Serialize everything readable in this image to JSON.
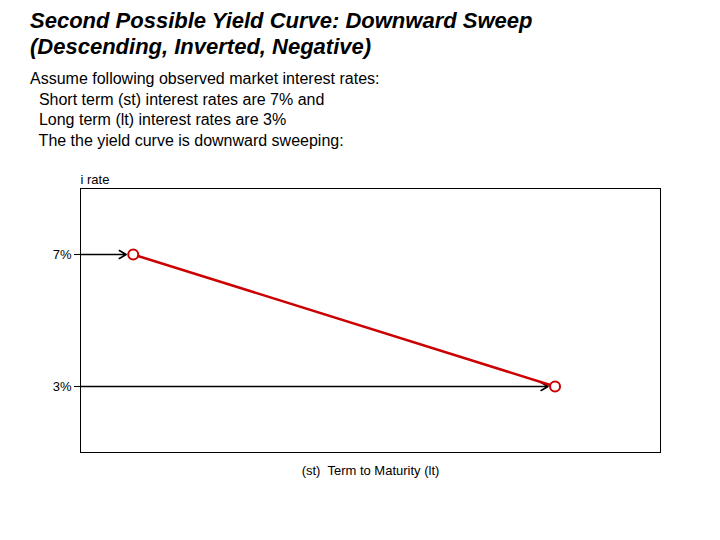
{
  "chart_data": {
    "type": "line",
    "title": "Second Possible Yield Curve: Downward Sweep",
    "subtitle": "(Descending, Inverted, Negative)",
    "annotations": [
      "Assume following observed market interest rates:",
      "  Short term (st) interest rates are 7% and",
      "  Long term (lt) interest rates are 3%",
      "  The the yield curve is downward sweeping:"
    ],
    "x": [
      1,
      9
    ],
    "values": [
      7,
      3
    ],
    "color": "#CC0000",
    "marker": "circle",
    "x_label": "(st)  Term to Maturity (lt)",
    "y_label": "i rate",
    "xlim": [
      0,
      11
    ],
    "xticks": [],
    "ylim": [
      1,
      9
    ],
    "yticks": [
      {
        "value": 3,
        "label": "3%"
      },
      {
        "value": 7,
        "label": "7%"
      }
    ],
    "tick_labels": "y",
    "grid": false
  }
}
